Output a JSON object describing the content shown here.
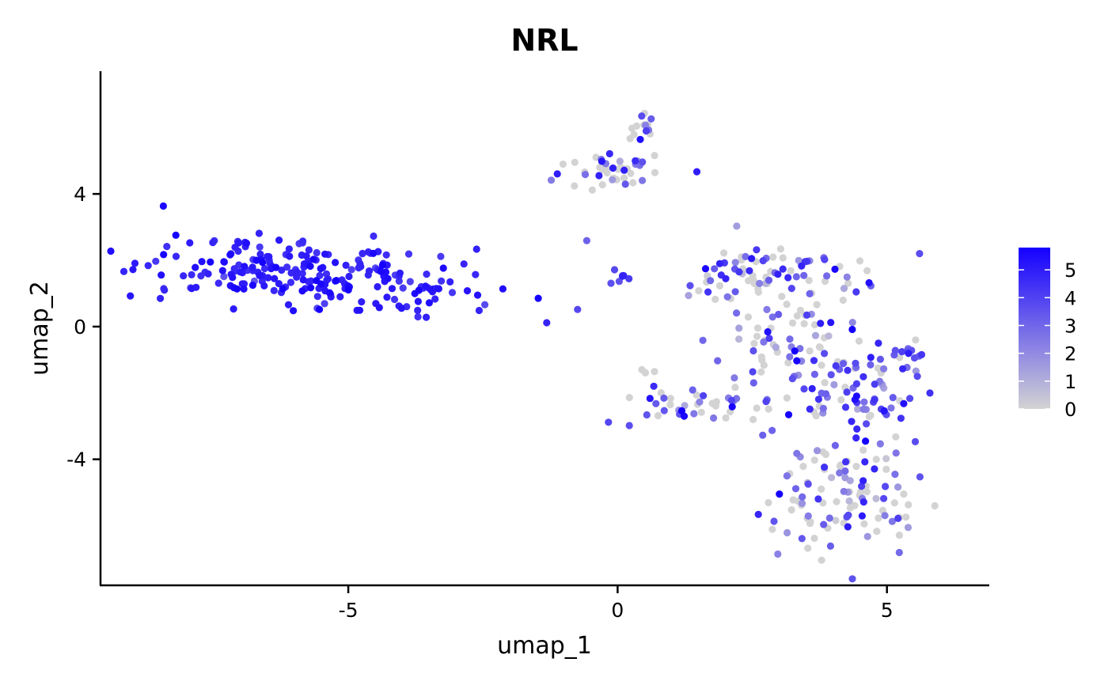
{
  "chart_data": {
    "type": "scatter",
    "title": "NRL",
    "xlabel": "umap_1",
    "ylabel": "umap_2",
    "xlim": [
      -9.6,
      6.9
    ],
    "ylim": [
      -7.8,
      7.7
    ],
    "x_ticks": [
      -5,
      0,
      5
    ],
    "y_ticks": [
      -4,
      0,
      4
    ],
    "x_tick_labels": [
      "-5",
      "0",
      "5"
    ],
    "y_tick_labels": [
      "-4",
      "0",
      "4"
    ],
    "grid": false,
    "color_scale": {
      "low": "#d3d3d3",
      "high": "#1500ff",
      "min": 0,
      "max": 5.8,
      "ticks": [
        0,
        1,
        2,
        3,
        4,
        5
      ],
      "tick_labels": [
        "0",
        "1",
        "2",
        "3",
        "4",
        "5"
      ],
      "legend_position": "right"
    },
    "clusters": [
      {
        "center": [
          -5.6,
          1.6
        ],
        "spread": [
          1.75,
          0.55
        ],
        "count": 240,
        "tilt": -0.14,
        "expr_mean": 4.9,
        "expr_sd": 0.5,
        "zero_frac": 0.0
      },
      {
        "center": [
          -0.1,
          4.7
        ],
        "spread": [
          0.45,
          0.25
        ],
        "count": 45,
        "tilt": 0.0,
        "expr_mean": 3.6,
        "expr_sd": 1.2,
        "zero_frac": 0.55
      },
      {
        "center": [
          0.45,
          5.9
        ],
        "spread": [
          0.15,
          0.35
        ],
        "count": 15,
        "tilt": 0.0,
        "expr_mean": 3.5,
        "expr_sd": 1.4,
        "zero_frac": 0.55
      },
      {
        "center": [
          2.9,
          1.6
        ],
        "spread": [
          0.9,
          0.45
        ],
        "count": 80,
        "tilt": 0.0,
        "expr_mean": 3.0,
        "expr_sd": 1.3,
        "zero_frac": 0.45
      },
      {
        "center": [
          3.0,
          -0.6
        ],
        "spread": [
          0.75,
          1.0
        ],
        "count": 75,
        "tilt": 0.0,
        "expr_mean": 3.3,
        "expr_sd": 1.2,
        "zero_frac": 0.4
      },
      {
        "center": [
          1.5,
          -2.4
        ],
        "spread": [
          0.8,
          0.25
        ],
        "count": 40,
        "tilt": 0.0,
        "expr_mean": 3.2,
        "expr_sd": 1.3,
        "zero_frac": 0.45
      },
      {
        "center": [
          4.5,
          -2.0
        ],
        "spread": [
          0.7,
          0.85
        ],
        "count": 80,
        "tilt": 0.0,
        "expr_mean": 3.6,
        "expr_sd": 1.1,
        "zero_frac": 0.3
      },
      {
        "center": [
          4.3,
          -5.2
        ],
        "spread": [
          0.8,
          0.9
        ],
        "count": 110,
        "tilt": 0.0,
        "expr_mean": 2.9,
        "expr_sd": 1.4,
        "zero_frac": 0.45
      },
      {
        "center": [
          5.35,
          -0.8
        ],
        "spread": [
          0.2,
          0.08
        ],
        "count": 10,
        "tilt": 0.0,
        "expr_mean": 4.0,
        "expr_sd": 0.5,
        "zero_frac": 0.0
      },
      {
        "center": [
          0.05,
          1.5
        ],
        "spread": [
          0.12,
          0.1
        ],
        "count": 7,
        "tilt": 0.0,
        "expr_mean": 4.3,
        "expr_sd": 0.5,
        "zero_frac": 0.0
      },
      {
        "center": [
          0.55,
          -1.35
        ],
        "spread": [
          0.08,
          0.08
        ],
        "count": 4,
        "tilt": 0.0,
        "expr_mean": 0.0,
        "expr_sd": 0.0,
        "zero_frac": 1.0
      }
    ]
  }
}
